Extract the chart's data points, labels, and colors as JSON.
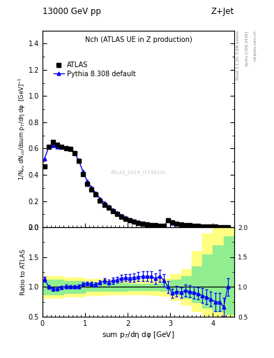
{
  "title_left": "13000 GeV pp",
  "title_right": "Z+Jet",
  "plot_title": "Nch (ATLAS UE in Z production)",
  "ylabel_main": "1/N$_{ev}$ dN$_{ch}$/dsum p$_T$/dη dφ  [GeV]$^{-1}$",
  "ylabel_ratio": "Ratio to ATLAS",
  "xlabel": "sum p$_T$/dη dφ [GeV]",
  "right_label1": "Rivet 3.1.10, 3.6M events",
  "right_label2": "[arXiv:1306.3436]",
  "right_label3": "mcplots.cern.ch",
  "watermark": "ATLAS_2019_I1736531",
  "atlas_x": [
    0.05,
    0.15,
    0.25,
    0.35,
    0.45,
    0.55,
    0.65,
    0.75,
    0.85,
    0.95,
    1.05,
    1.15,
    1.25,
    1.35,
    1.45,
    1.55,
    1.65,
    1.75,
    1.85,
    1.95,
    2.05,
    2.15,
    2.25,
    2.35,
    2.45,
    2.55,
    2.65,
    2.75,
    2.85,
    2.95,
    3.05,
    3.15,
    3.25,
    3.35,
    3.45,
    3.55,
    3.65,
    3.75,
    3.85,
    3.95,
    4.05,
    4.15,
    4.25,
    4.35
  ],
  "atlas_y": [
    0.465,
    0.615,
    0.648,
    0.63,
    0.615,
    0.6,
    0.595,
    0.565,
    0.505,
    0.405,
    0.33,
    0.29,
    0.25,
    0.205,
    0.17,
    0.148,
    0.123,
    0.1,
    0.08,
    0.065,
    0.053,
    0.043,
    0.035,
    0.028,
    0.022,
    0.017,
    0.014,
    0.011,
    0.009,
    0.054,
    0.038,
    0.028,
    0.022,
    0.017,
    0.014,
    0.011,
    0.009,
    0.007,
    0.006,
    0.005,
    0.004,
    0.003,
    0.003,
    0.002
  ],
  "pythia_x": [
    0.05,
    0.15,
    0.25,
    0.35,
    0.45,
    0.55,
    0.65,
    0.75,
    0.85,
    0.95,
    1.05,
    1.15,
    1.25,
    1.35,
    1.45,
    1.55,
    1.65,
    1.75,
    1.85,
    1.95,
    2.05,
    2.15,
    2.25,
    2.35,
    2.45,
    2.55,
    2.65,
    2.75,
    2.85,
    2.95,
    3.05,
    3.15,
    3.25,
    3.35,
    3.45,
    3.55,
    3.65,
    3.75,
    3.85,
    3.95,
    4.05,
    4.15,
    4.25,
    4.35
  ],
  "pythia_y": [
    0.525,
    0.615,
    0.625,
    0.615,
    0.612,
    0.606,
    0.6,
    0.568,
    0.51,
    0.425,
    0.35,
    0.305,
    0.26,
    0.22,
    0.188,
    0.16,
    0.136,
    0.112,
    0.092,
    0.075,
    0.061,
    0.05,
    0.041,
    0.033,
    0.026,
    0.02,
    0.016,
    0.013,
    0.01,
    0.054,
    0.034,
    0.026,
    0.02,
    0.016,
    0.013,
    0.01,
    0.008,
    0.006,
    0.005,
    0.004,
    0.003,
    0.003,
    0.002,
    0.002
  ],
  "ratio_x": [
    0.05,
    0.15,
    0.25,
    0.35,
    0.45,
    0.55,
    0.65,
    0.75,
    0.85,
    0.95,
    1.05,
    1.15,
    1.25,
    1.35,
    1.45,
    1.55,
    1.65,
    1.75,
    1.85,
    1.95,
    2.05,
    2.15,
    2.25,
    2.35,
    2.45,
    2.55,
    2.65,
    2.75,
    2.85,
    2.95,
    3.05,
    3.15,
    3.25,
    3.35,
    3.45,
    3.55,
    3.65,
    3.75,
    3.85,
    3.95,
    4.05,
    4.15,
    4.25,
    4.35
  ],
  "ratio_y": [
    1.13,
    1.0,
    0.965,
    0.976,
    0.995,
    1.01,
    1.008,
    1.005,
    1.01,
    1.049,
    1.06,
    1.052,
    1.04,
    1.073,
    1.106,
    1.081,
    1.106,
    1.12,
    1.15,
    1.154,
    1.151,
    1.163,
    1.171,
    1.179,
    1.182,
    1.176,
    1.143,
    1.182,
    1.111,
    1.0,
    0.895,
    0.929,
    0.909,
    0.941,
    0.929,
    0.909,
    0.889,
    0.857,
    0.833,
    0.8,
    0.75,
    0.75,
    0.667,
    1.0
  ],
  "ratio_err": [
    0.04,
    0.03,
    0.025,
    0.025,
    0.025,
    0.025,
    0.025,
    0.025,
    0.025,
    0.03,
    0.03,
    0.03,
    0.03,
    0.035,
    0.04,
    0.04,
    0.05,
    0.05,
    0.06,
    0.06,
    0.065,
    0.07,
    0.075,
    0.08,
    0.085,
    0.09,
    0.09,
    0.1,
    0.1,
    0.1,
    0.08,
    0.09,
    0.09,
    0.1,
    0.1,
    0.1,
    0.1,
    0.12,
    0.12,
    0.12,
    0.15,
    0.15,
    0.15,
    0.15
  ],
  "green_band_x": [
    0.0,
    0.5,
    1.0,
    1.5,
    2.0,
    2.5,
    2.75,
    3.0,
    3.25,
    3.5,
    3.75,
    4.0,
    4.25,
    4.5
  ],
  "green_band_lo": [
    0.88,
    0.9,
    0.93,
    0.94,
    0.95,
    0.95,
    0.94,
    0.88,
    0.82,
    0.75,
    0.65,
    0.6,
    0.55,
    0.5
  ],
  "green_band_hi": [
    1.12,
    1.1,
    1.07,
    1.06,
    1.05,
    1.05,
    1.06,
    1.12,
    1.18,
    1.35,
    1.55,
    1.7,
    1.85,
    2.0
  ],
  "yellow_band_lo": [
    0.82,
    0.84,
    0.87,
    0.88,
    0.88,
    0.87,
    0.85,
    0.78,
    0.7,
    0.6,
    0.52,
    0.45,
    0.4,
    0.38
  ],
  "yellow_band_hi": [
    1.18,
    1.16,
    1.13,
    1.12,
    1.12,
    1.13,
    1.15,
    1.22,
    1.3,
    1.6,
    1.9,
    2.1,
    2.2,
    2.4
  ],
  "main_ylim": [
    0.0,
    1.5
  ],
  "ratio_ylim": [
    0.5,
    2.0
  ],
  "xlim": [
    0.0,
    4.5
  ],
  "main_yticks": [
    0.0,
    0.2,
    0.4,
    0.6,
    0.8,
    1.0,
    1.2,
    1.4
  ],
  "ratio_yticks": [
    0.5,
    1.0,
    1.5,
    2.0
  ],
  "xticks": [
    0,
    1,
    2,
    3,
    4
  ]
}
